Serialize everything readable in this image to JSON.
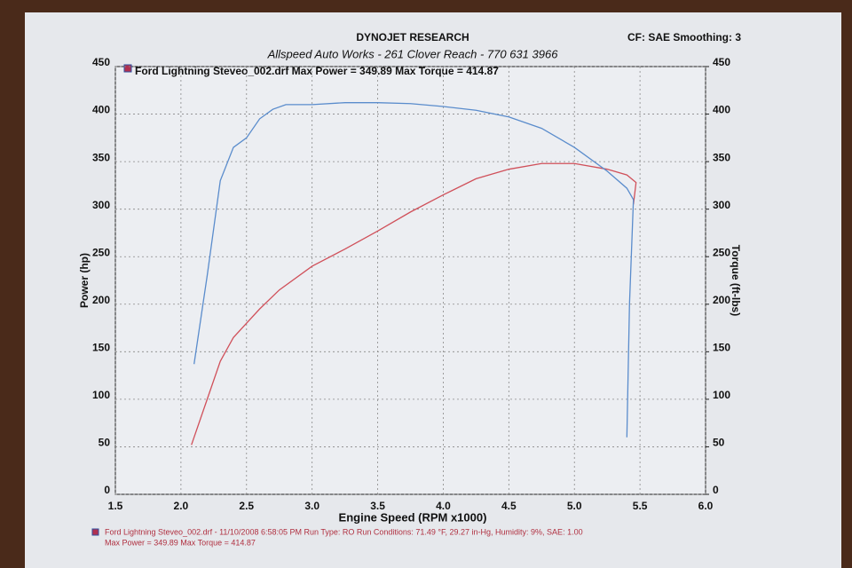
{
  "chart_data": {
    "type": "line",
    "title": "DYNOJET RESEARCH",
    "subtitle": "Allspeed Auto Works - 261 Clover Reach - 770 631 3966",
    "settings_note": "CF: SAE  Smoothing: 3",
    "legend_text": "Ford Lightning Steveo_002.drf Max Power = 349.89    Max Torque = 414.87",
    "x_label": "Engine Speed (RPM x1000)",
    "y_label": "Power (hp)",
    "y2_label": "Torque (ft-lbs)",
    "footer": [
      "Ford Lightning Steveo_002.drf - 11/10/2008 6:58:05 PM  Run Type: RO  Run Conditions: 71.49 °F, 29.27 in-Hg,  Humidity:  9%, SAE: 1.00",
      "Max Power = 349.89  Max Torque = 414.87"
    ],
    "xlim": [
      1.5,
      6.0
    ],
    "xticks": [
      1.5,
      {
        "value": 2,
        "label": "2.0"
      },
      2.5,
      {
        "value": 3,
        "label": "3.0"
      },
      3.5,
      {
        "value": 4,
        "label": "4.0"
      },
      4.5,
      {
        "value": 5,
        "label": "5.0"
      },
      5.5,
      {
        "value": 6,
        "label": "6.0"
      }
    ],
    "ylim": [
      0,
      450
    ],
    "yticks": [
      0,
      50,
      100,
      150,
      200,
      250,
      300,
      350,
      400,
      450
    ],
    "y2lim": [
      0,
      450
    ],
    "y2ticks": [
      0,
      50,
      100,
      150,
      200,
      250,
      300,
      350,
      400,
      450
    ],
    "grid": true,
    "series": [
      {
        "color": "#d0505a",
        "x": [
          2.08,
          2.2,
          2.3,
          2.4,
          2.5,
          2.6,
          2.75,
          3.0,
          3.25,
          3.5,
          3.75,
          4.0,
          4.25,
          4.5,
          4.75,
          5.0,
          5.25,
          5.4,
          5.47,
          5.45
        ],
        "values": [
          52,
          100,
          140,
          165,
          180,
          195,
          215,
          240,
          258,
          277,
          297,
          315,
          332,
          342,
          348,
          348,
          342,
          336,
          328,
          305
        ]
      },
      {
        "color": "#5a8ccc",
        "axis": "y2",
        "x": [
          2.1,
          2.2,
          2.3,
          2.4,
          2.5,
          2.6,
          2.7,
          2.8,
          3.0,
          3.25,
          3.5,
          3.75,
          4.0,
          4.25,
          4.5,
          4.75,
          5.0,
          5.25,
          5.4,
          5.45,
          5.42,
          5.4
        ],
        "values": [
          137,
          230,
          330,
          365,
          375,
          395,
          405,
          410,
          410,
          412,
          412,
          411,
          408,
          404,
          397,
          385,
          365,
          340,
          322,
          310,
          200,
          60
        ]
      }
    ]
  }
}
